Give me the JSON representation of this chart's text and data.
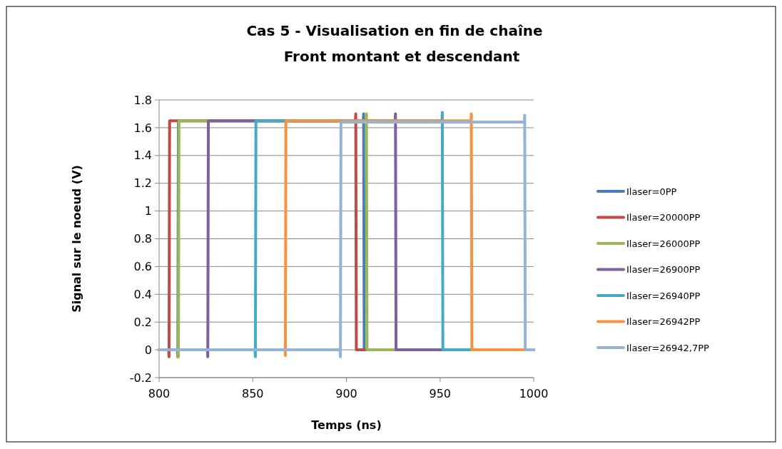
{
  "chart_data": {
    "type": "line",
    "title": "Cas 5 - Visualisation en fin de chaîne",
    "subtitle": "Front montant et descendant",
    "xlabel": "Temps (ns)",
    "ylabel": "Signal sur le noeud (V)",
    "xlim": [
      800,
      1000
    ],
    "xticks": [
      800,
      850,
      900,
      950,
      1000
    ],
    "ylim": [
      -0.2,
      1.8
    ],
    "yticks": [
      -0.2,
      0,
      0.2,
      0.4,
      0.6,
      0.8,
      1,
      1.2,
      1.4,
      1.6,
      1.8
    ],
    "grid": "y",
    "legend": "right",
    "marker": "none",
    "line_style": "solid",
    "series": [
      {
        "name": "Ilaser=0PP",
        "color": "#4a7ebb",
        "x": [
          800,
          809.8,
          810,
          810.3,
          909,
          909.2,
          909.5,
          1000
        ],
        "values": [
          0,
          0,
          -0.05,
          1.65,
          1.65,
          1.7,
          0,
          0
        ]
      },
      {
        "name": "Ilaser=20000PP",
        "color": "#be4b48",
        "x": [
          800,
          805.1,
          805.3,
          805.6,
          904.8,
          905,
          905.3,
          1000
        ],
        "values": [
          0,
          0,
          -0.05,
          1.65,
          1.65,
          1.7,
          0,
          0
        ]
      },
      {
        "name": "Ilaser=26000PP",
        "color": "#98b954",
        "x": [
          800,
          810.1,
          810.3,
          810.6,
          910.5,
          910.7,
          911,
          1000
        ],
        "values": [
          0,
          0,
          -0.05,
          1.65,
          1.65,
          1.7,
          0,
          0
        ]
      },
      {
        "name": "Ilaser=26900PP",
        "color": "#7d60a0",
        "x": [
          800,
          825.8,
          826,
          826.3,
          926,
          926.2,
          926.5,
          1000
        ],
        "values": [
          0,
          0,
          -0.05,
          1.65,
          1.65,
          1.7,
          0,
          0
        ]
      },
      {
        "name": "Ilaser=26940PP",
        "color": "#46aac5",
        "x": [
          800,
          851.2,
          851.4,
          851.7,
          951,
          951.2,
          951.5,
          1000
        ],
        "values": [
          0,
          0,
          -0.05,
          1.65,
          1.65,
          1.71,
          0,
          0
        ]
      },
      {
        "name": "Ilaser=26942PP",
        "color": "#f69240",
        "x": [
          800,
          867.2,
          867.4,
          867.7,
          966.5,
          966.7,
          967,
          1000
        ],
        "values": [
          0,
          0,
          -0.04,
          1.65,
          1.65,
          1.7,
          0,
          0
        ]
      },
      {
        "name": "Ilaser=26942,7PP",
        "color": "#95b3d7",
        "x": [
          800,
          896.6,
          896.8,
          897.1,
          995,
          995.2,
          995.5,
          1000
        ],
        "values": [
          0,
          0,
          -0.05,
          1.64,
          1.64,
          1.69,
          0,
          0
        ]
      }
    ]
  }
}
